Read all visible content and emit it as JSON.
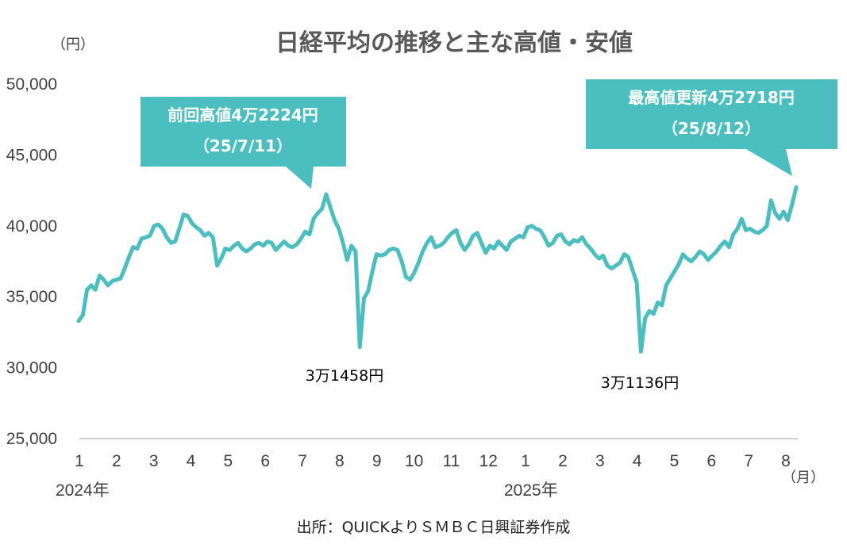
{
  "chart_data": {
    "type": "line",
    "title": "日経平均の推移と主な高値・安値",
    "y_unit_label": "（円）",
    "x_unit_label": "（月）",
    "ylim": [
      25000,
      50000
    ],
    "y_ticks": [
      "25,000",
      "30,000",
      "35,000",
      "40,000",
      "45,000",
      "50,000"
    ],
    "y_tick_values": [
      25000,
      30000,
      35000,
      40000,
      45000,
      50000
    ],
    "x_ticks": [
      "1",
      "2",
      "3",
      "4",
      "5",
      "6",
      "7",
      "8",
      "9",
      "10",
      "11",
      "12",
      "1",
      "2",
      "3",
      "4",
      "5",
      "6",
      "7",
      "8"
    ],
    "year_labels": [
      "2024年",
      "2025年"
    ],
    "grid": false,
    "color": "#4bbfbf",
    "series": [
      {
        "values": [
          33300,
          33700,
          35500,
          35800,
          35500,
          36500,
          36200,
          35800,
          36100,
          36200,
          36300,
          37000,
          37800,
          38500,
          38400,
          39100,
          39200,
          39300,
          40000,
          40100,
          39800,
          39200,
          38800,
          38900,
          39800,
          40800,
          40700,
          40200,
          39900,
          39700,
          39300,
          39500,
          39200,
          37200,
          37700,
          38400,
          38300,
          38600,
          38800,
          38400,
          38200,
          38400,
          38700,
          38800,
          38600,
          38900,
          38800,
          38300,
          38600,
          38900,
          38600,
          38500,
          38700,
          39100,
          39600,
          39400,
          40500,
          40900,
          41200,
          42224,
          41300,
          40400,
          39800,
          38800,
          37600,
          38600,
          38200,
          31458,
          34900,
          35400,
          36800,
          38000,
          37900,
          38000,
          38300,
          38400,
          38300,
          37500,
          36400,
          36200,
          36700,
          37400,
          38200,
          38800,
          39200,
          38500,
          38600,
          38800,
          39200,
          39500,
          39700,
          38800,
          38300,
          38700,
          39300,
          39500,
          38800,
          38100,
          38600,
          38400,
          38900,
          38600,
          38300,
          38900,
          39100,
          39300,
          39200,
          39900,
          40000,
          39800,
          39700,
          39200,
          38600,
          38800,
          39300,
          39400,
          38900,
          38700,
          39000,
          38900,
          39200,
          38700,
          38400,
          38000,
          37700,
          37900,
          37200,
          37000,
          37200,
          37400,
          38000,
          37800,
          36900,
          36000,
          31136,
          33500,
          34000,
          33800,
          34600,
          34400,
          35800,
          36300,
          36800,
          37300,
          38000,
          37700,
          37500,
          37800,
          38200,
          38000,
          37600,
          37900,
          38200,
          38600,
          38900,
          38500,
          39400,
          39800,
          40500,
          39700,
          39800,
          39600,
          39500,
          39700,
          40000,
          41800,
          40900,
          40500,
          41000,
          40400,
          41500,
          42718
        ]
      }
    ],
    "annotations": [
      {
        "text": "3万1458円"
      },
      {
        "text": "3万1136円"
      }
    ],
    "callouts": [
      {
        "line1": "前回高値4万2224円",
        "line2": "（25/7/11）"
      },
      {
        "line1": "最高値更新4万2718円",
        "line2": "（25/8/12）"
      }
    ],
    "source": "出所：QUICKよりＳＭＢＣ日興証券作成"
  }
}
